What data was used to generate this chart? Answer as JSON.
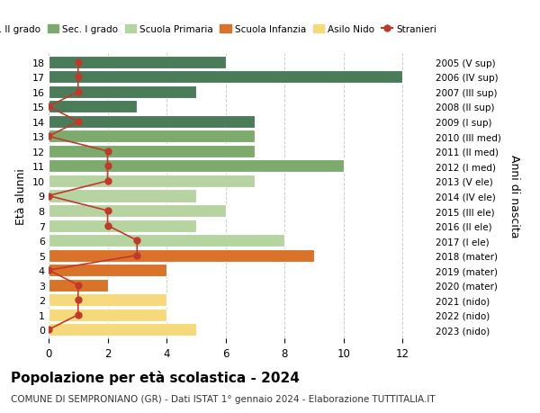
{
  "ages": [
    18,
    17,
    16,
    15,
    14,
    13,
    12,
    11,
    10,
    9,
    8,
    7,
    6,
    5,
    4,
    3,
    2,
    1,
    0
  ],
  "right_labels": [
    "2005 (V sup)",
    "2006 (IV sup)",
    "2007 (III sup)",
    "2008 (II sup)",
    "2009 (I sup)",
    "2010 (III med)",
    "2011 (II med)",
    "2012 (I med)",
    "2013 (V ele)",
    "2014 (IV ele)",
    "2015 (III ele)",
    "2016 (II ele)",
    "2017 (I ele)",
    "2018 (mater)",
    "2019 (mater)",
    "2020 (mater)",
    "2021 (nido)",
    "2022 (nido)",
    "2023 (nido)"
  ],
  "bar_values": [
    6,
    12,
    5,
    3,
    7,
    7,
    7,
    10,
    7,
    5,
    6,
    5,
    8,
    9,
    4,
    2,
    4,
    4,
    5
  ],
  "bar_colors": [
    "#4a7c59",
    "#4a7c59",
    "#4a7c59",
    "#4a7c59",
    "#4a7c59",
    "#7dab6e",
    "#7dab6e",
    "#7dab6e",
    "#b5d4a0",
    "#b5d4a0",
    "#b5d4a0",
    "#b5d4a0",
    "#b5d4a0",
    "#d9732a",
    "#d9732a",
    "#d9732a",
    "#f5d97a",
    "#f5d97a",
    "#f5d97a"
  ],
  "stranieri_values": [
    1,
    1,
    1,
    0,
    1,
    0,
    2,
    2,
    2,
    0,
    2,
    2,
    3,
    3,
    0,
    1,
    1,
    1,
    0
  ],
  "stranieri_color": "#c0392b",
  "legend_labels": [
    "Sec. II grado",
    "Sec. I grado",
    "Scuola Primaria",
    "Scuola Infanzia",
    "Asilo Nido",
    "Stranieri"
  ],
  "legend_colors": [
    "#4a7c59",
    "#7dab6e",
    "#b5d4a0",
    "#d9732a",
    "#f5d97a",
    "#c0392b"
  ],
  "ylabel_left": "Età alunni",
  "ylabel_right": "Anni di nascita",
  "title": "Popolazione per età scolastica - 2024",
  "subtitle": "COMUNE DI SEMPRONIANO (GR) - Dati ISTAT 1° gennaio 2024 - Elaborazione TUTTITALIA.IT",
  "xlim": [
    0,
    13
  ],
  "xticks": [
    0,
    2,
    4,
    6,
    8,
    10,
    12
  ],
  "ylim_min": -0.6,
  "ylim_max": 18.6,
  "bg_color": "#ffffff",
  "grid_color": "#cccccc"
}
